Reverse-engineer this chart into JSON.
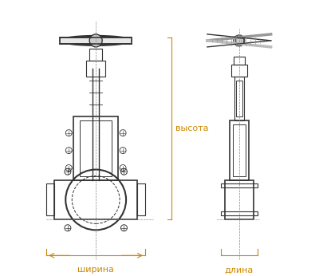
{
  "bg_color": "#ffffff",
  "line_color": "#333333",
  "dim_color": "#cc8800",
  "label_shirna": "ширина",
  "label_dlina": "длина",
  "label_vysota": "высота",
  "fig_width": 4.0,
  "fig_height": 3.46,
  "dpi": 100
}
